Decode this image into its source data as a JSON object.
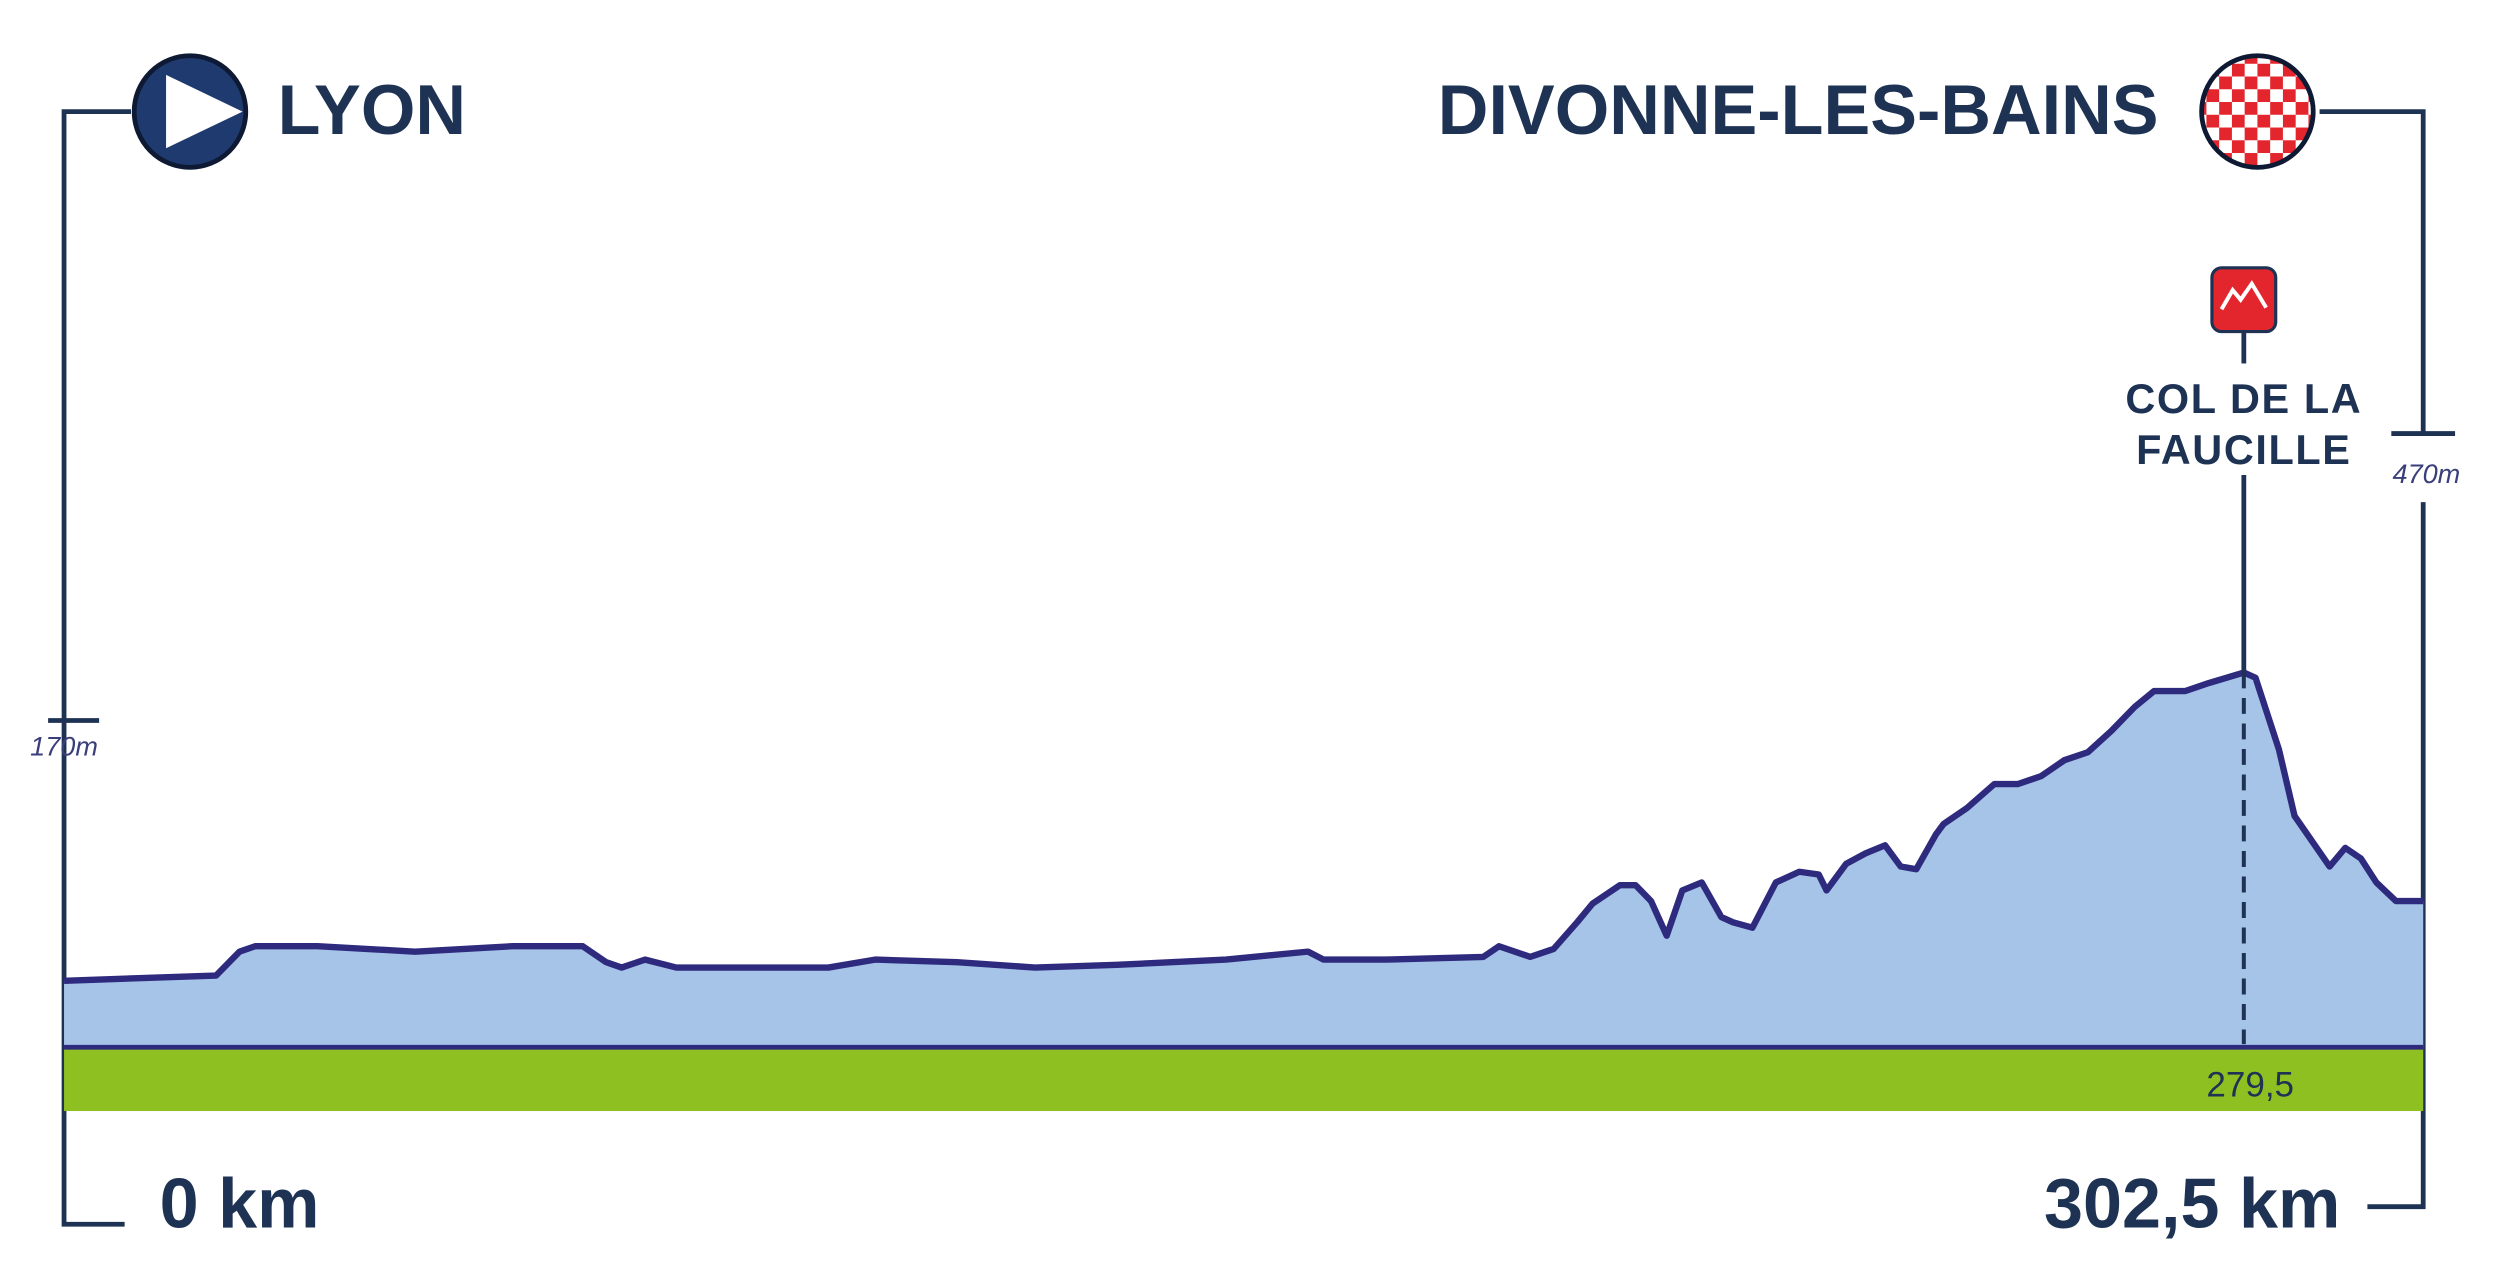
{
  "chart_data": {
    "type": "area",
    "start": "LYON",
    "finish": "DIVONNE-LES-BAINS",
    "start_altitude_label": "170m",
    "finish_altitude_label": "470m",
    "x": [
      0,
      10,
      19.5,
      22.5,
      24.5,
      32.5,
      45,
      57.5,
      66.5,
      69.5,
      71.5,
      74.5,
      78.5,
      90,
      98,
      104,
      114.5,
      124.5,
      135,
      142,
      149,
      159.5,
      161.5,
      169.5,
      182,
      184,
      188,
      191,
      194,
      196,
      199.5,
      201.5,
      203.5,
      205.5,
      207.5,
      210,
      212.5,
      214,
      216.5,
      219.5,
      222.5,
      225,
      226,
      228.5,
      231,
      233.5,
      235.5,
      237.5,
      240,
      241,
      244,
      247.5,
      250.5,
      253.5,
      256.5,
      259.5,
      262.5,
      265.5,
      268,
      272,
      275,
      279.5,
      281,
      284,
      286,
      290.5,
      292.5,
      294.5,
      296.5,
      299,
      302.5
    ],
    "values": [
      170,
      180,
      190,
      280,
      300,
      300,
      280,
      300,
      300,
      240,
      220,
      250,
      220,
      220,
      220,
      250,
      240,
      220,
      230,
      240,
      250,
      280,
      250,
      250,
      260,
      300,
      260,
      290,
      390,
      460,
      530,
      530,
      470,
      340,
      510,
      540,
      410,
      390,
      370,
      540,
      580,
      570,
      510,
      610,
      650,
      680,
      600,
      590,
      720,
      760,
      820,
      910,
      910,
      940,
      1000,
      1030,
      1110,
      1200,
      1260,
      1260,
      1290,
      1330,
      1310,
      1040,
      790,
      600,
      670,
      630,
      540,
      470,
      470
    ],
    "color": "#a5c4e8",
    "line_color": "#2e2a7e",
    "ground_color": "#8fc021",
    "xlim": [
      0,
      302.5
    ],
    "ylim": [
      -80,
      3500
    ],
    "xticks": [
      {
        "value": 0,
        "label": "0 km"
      },
      {
        "value": 302.5,
        "label": "302,5 km"
      }
    ],
    "climbs": [
      {
        "label_lines": [
          "COL DE LA",
          "FAUCILLE"
        ],
        "km": {
          "value": 279.5,
          "label": "279,5"
        },
        "color": "#e3262d"
      }
    ]
  }
}
